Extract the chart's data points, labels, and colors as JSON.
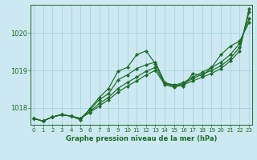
{
  "title": "Graphe pression niveau de la mer (hPa)",
  "background_color": "#cce8f0",
  "grid_color": "#9fcfdc",
  "line_color": "#1e6b27",
  "x_ticks": [
    0,
    1,
    2,
    3,
    4,
    5,
    6,
    7,
    8,
    9,
    10,
    11,
    12,
    13,
    14,
    15,
    16,
    17,
    18,
    19,
    20,
    21,
    22,
    23
  ],
  "ylim": [
    1017.55,
    1020.75
  ],
  "y_ticks": [
    1018,
    1019,
    1020
  ],
  "series": [
    [
      1017.72,
      1017.65,
      1017.76,
      1017.82,
      1017.78,
      1017.72,
      1017.88,
      1018.05,
      1018.22,
      1018.42,
      1018.58,
      1018.72,
      1018.88,
      1019.0,
      1018.62,
      1018.55,
      1018.62,
      1018.72,
      1018.82,
      1018.92,
      1019.05,
      1019.25,
      1019.52,
      1020.65
    ],
    [
      1017.72,
      1017.65,
      1017.76,
      1017.82,
      1017.78,
      1017.72,
      1017.9,
      1018.12,
      1018.28,
      1018.52,
      1018.68,
      1018.82,
      1018.98,
      1019.08,
      1018.65,
      1018.58,
      1018.65,
      1018.78,
      1018.9,
      1019.0,
      1019.12,
      1019.32,
      1019.62,
      1020.55
    ],
    [
      1017.72,
      1017.65,
      1017.76,
      1017.82,
      1017.78,
      1017.72,
      1017.95,
      1018.22,
      1018.38,
      1018.75,
      1018.88,
      1019.05,
      1019.15,
      1019.22,
      1018.68,
      1018.6,
      1018.68,
      1018.82,
      1018.95,
      1019.08,
      1019.22,
      1019.42,
      1019.72,
      1020.38
    ],
    [
      1017.72,
      1017.65,
      1017.76,
      1017.82,
      1017.78,
      1017.68,
      1017.98,
      1018.28,
      1018.52,
      1018.98,
      1019.08,
      1019.42,
      1019.52,
      1019.18,
      1018.65,
      1018.62,
      1018.58,
      1018.92,
      1018.85,
      1019.08,
      1019.42,
      1019.65,
      1019.78,
      1020.28
    ]
  ]
}
